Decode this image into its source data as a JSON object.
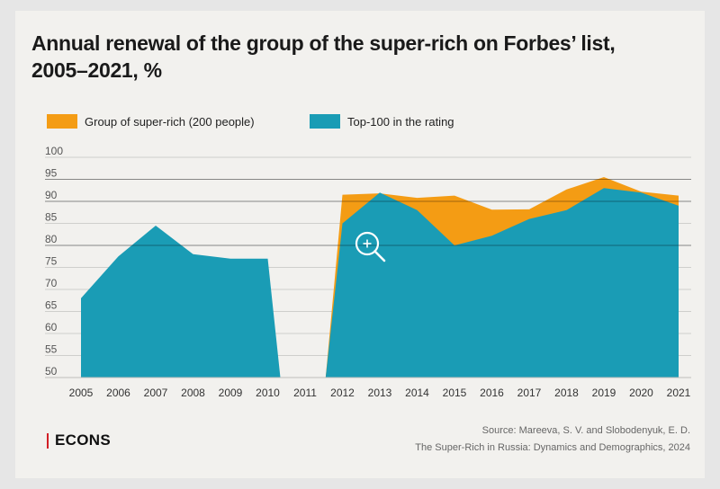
{
  "title_line1": "Annual renewal of the group of the super-rich on Forbes’ list,",
  "title_line2": "2005–2021, %",
  "chart_data": {
    "type": "area",
    "title": "Annual renewal of the group of the super-rich on Forbes’ list, 2005–2021, %",
    "xlabel": "",
    "ylabel": "",
    "x": [
      2005,
      2006,
      2007,
      2008,
      2009,
      2010,
      2011,
      2012,
      2013,
      2014,
      2015,
      2016,
      2017,
      2018,
      2019,
      2020,
      2021
    ],
    "x_tick_labels": [
      "2005",
      "2006",
      "2007",
      "2008",
      "2009",
      "2010",
      "2011",
      "2012",
      "2013",
      "2014",
      "2015",
      "2016",
      "2017",
      "2018",
      "2019",
      "2020",
      "2021"
    ],
    "ylim": [
      50,
      100
    ],
    "y_ticks": [
      50,
      55,
      60,
      65,
      70,
      75,
      80,
      85,
      90,
      95,
      100
    ],
    "grid": true,
    "legend_position": "top-left",
    "series": [
      {
        "name": "Group of super-rich (200 people)",
        "color": "#f49c14",
        "values": [
          null,
          null,
          null,
          null,
          null,
          null,
          null,
          91.5,
          91.8,
          90.8,
          91.3,
          88.1,
          88.2,
          92.7,
          95.5,
          92.2,
          91.3
        ]
      },
      {
        "name": "Top-100 in the rating",
        "color": "#1a9cb5",
        "values": [
          68,
          77.5,
          84.5,
          78,
          77,
          77,
          null,
          85,
          92,
          88,
          80,
          82.2,
          86,
          88,
          93,
          92,
          89
        ]
      }
    ]
  },
  "logo_text": "ECONS",
  "logo_accent_color": "#d21f26",
  "source_line1": "Source: Mareeva, S. V. and Slobodenyuk, E. D.",
  "source_line2": "The Super-Rich in Russia: Dynamics and Demographics, 2024",
  "zoom_icon": "magnifier-plus-icon"
}
